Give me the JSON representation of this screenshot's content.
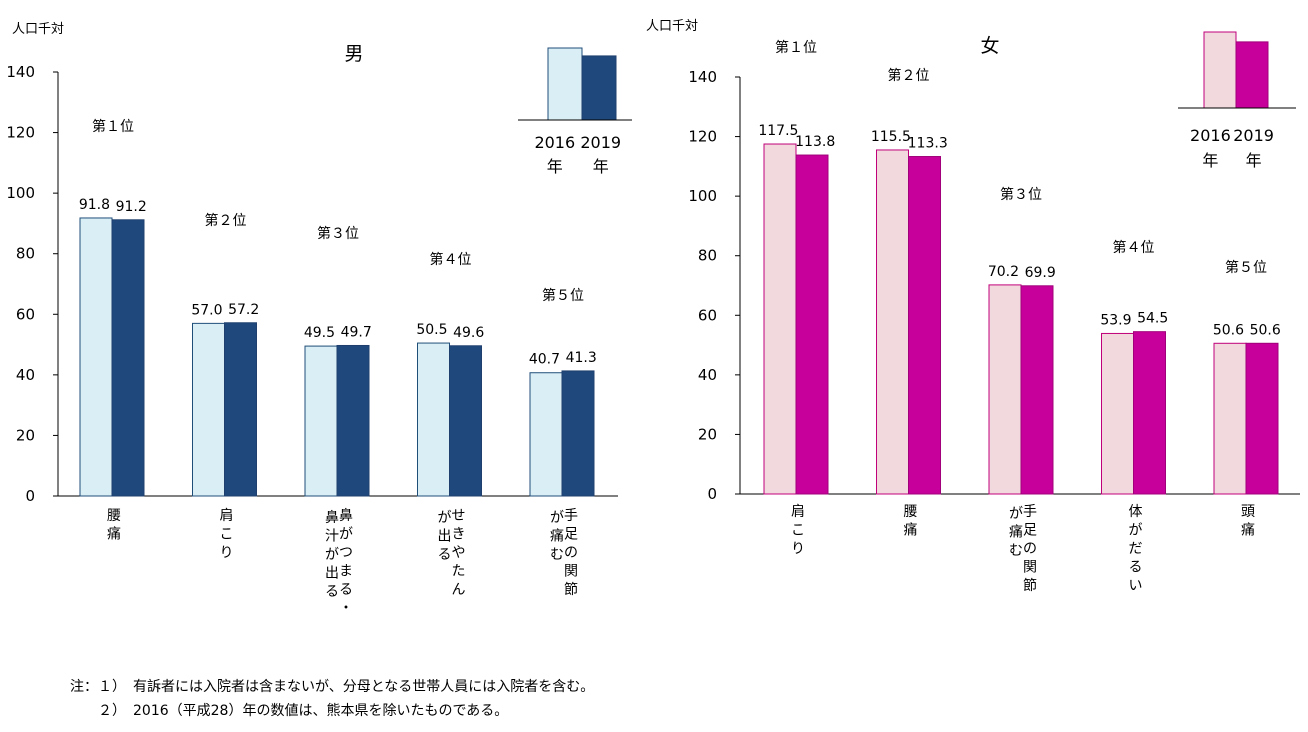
{
  "chart_data": [
    {
      "type": "bar",
      "title": "男",
      "unit_label": "人口千対",
      "ylim": [
        0,
        140
      ],
      "yticks": [
        "0",
        "20",
        "40",
        "60",
        "80",
        "100",
        "120",
        "140"
      ],
      "categories": [
        "腰痛",
        "肩こり",
        "鼻がつまる・鼻汁が出る",
        "せきやたんが出る",
        "手足の関節が痛む"
      ],
      "category_columns": [
        [
          "腰",
          "痛"
        ],
        [
          "肩",
          "こ",
          "り"
        ],
        [
          "鼻",
          "が",
          "つ",
          "ま",
          "る",
          "・"
        ],
        [
          "せ",
          "き",
          "や",
          "た",
          "ん"
        ],
        [
          "手",
          "足",
          "の",
          "関",
          "節"
        ]
      ],
      "category_columns_2": [
        [],
        [],
        [
          "鼻",
          "汁",
          "が",
          "出",
          "る"
        ],
        [
          "が",
          "出",
          "る"
        ],
        [
          "が",
          "痛",
          "む"
        ]
      ],
      "ranks": [
        "第１位",
        "第２位",
        "第３位",
        "第４位",
        "第５位"
      ],
      "series": [
        {
          "name": "2016年",
          "values": [
            91.8,
            57.0,
            49.5,
            50.5,
            40.7
          ],
          "labels": [
            "91.8",
            "57.0",
            "49.5",
            "50.5",
            "40.7"
          ]
        },
        {
          "name": "2019年",
          "values": [
            91.2,
            57.2,
            49.7,
            49.6,
            41.3
          ],
          "labels": [
            "91.2",
            "57.2",
            "49.7",
            "49.6",
            "41.3"
          ]
        }
      ],
      "colors": {
        "s2016_fill": "#daeef5",
        "s2016_stroke": "#1f4e79",
        "s2019_fill": "#1f497d",
        "s2019_stroke": "#1f3f6e"
      },
      "legend": {
        "placement": "top-right",
        "years": [
          "2016",
          "2019"
        ],
        "year_suffix": "年"
      }
    },
    {
      "type": "bar",
      "title": "女",
      "unit_label": "人口千対",
      "ylim": [
        0,
        140
      ],
      "yticks": [
        "0",
        "20",
        "40",
        "60",
        "80",
        "100",
        "120",
        "140"
      ],
      "categories": [
        "肩こり",
        "腰痛",
        "手足の関節が痛む",
        "体がだるい",
        "頭痛"
      ],
      "category_columns": [
        [
          "肩",
          "こ",
          "り"
        ],
        [
          "腰",
          "痛"
        ],
        [
          "手",
          "足",
          "の",
          "関",
          "節"
        ],
        [
          "体",
          "が",
          "だ",
          "る",
          "い"
        ],
        [
          "頭",
          "痛"
        ]
      ],
      "category_columns_2": [
        [],
        [],
        [
          "が",
          "痛",
          "む"
        ],
        [],
        []
      ],
      "ranks": [
        "第１位",
        "第２位",
        "第３位",
        "第４位",
        "第５位"
      ],
      "series": [
        {
          "name": "2016年",
          "values": [
            117.5,
            115.5,
            70.2,
            53.9,
            50.6
          ],
          "labels": [
            "117.5",
            "115.5",
            "70.2",
            "53.9",
            "50.6"
          ]
        },
        {
          "name": "2019年",
          "values": [
            113.8,
            113.3,
            69.9,
            54.5,
            50.6
          ],
          "labels": [
            "113.8",
            "113.3",
            "69.9",
            "54.5",
            "50.6"
          ]
        }
      ],
      "colors": {
        "s2016_fill": "#f2d9dd",
        "s2016_stroke": "#c0007a",
        "s2019_fill": "#c8009b",
        "s2019_stroke": "#a0007a"
      },
      "legend": {
        "placement": "top-right",
        "years": [
          "2016",
          "2019"
        ],
        "year_suffix": "年"
      }
    }
  ],
  "notes": [
    "注：１）　有訴者には入院者は含まないが、分母となる世帯人員には入院者を含む。",
    "　　２）　2016（平成28）年の数値は、熊本県を除いたものである。"
  ]
}
